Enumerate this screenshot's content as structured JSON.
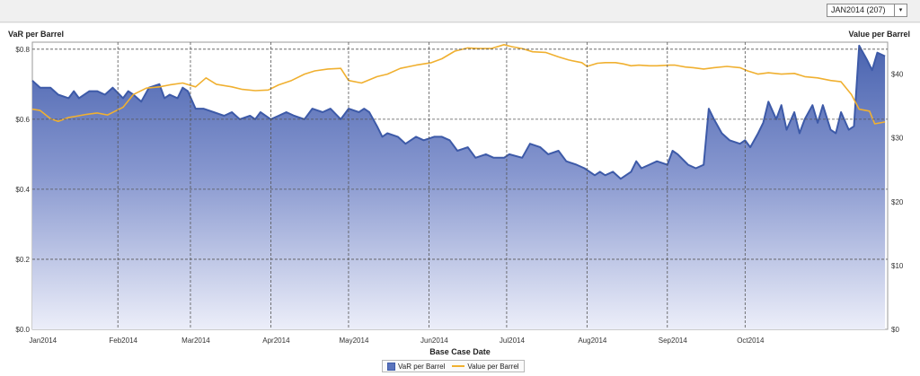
{
  "selector": {
    "value": "JAN2014 (207)",
    "arrow": "▾"
  },
  "chart_data": {
    "type": "area+line",
    "xlabel": "Base Case Date",
    "ylabel_left": "VaR per Barrel",
    "ylabel_right": "Value per Barrel",
    "x_ticks": [
      "Jan2014",
      "Feb2014",
      "Mar2014",
      "Apr2014",
      "May2014",
      "Jun2014",
      "Jul2014",
      "Aug2014",
      "Sep2014",
      "Oct2014"
    ],
    "y_left_ticks": [
      "$0.0",
      "$0.2",
      "$0.4",
      "$0.6",
      "$0.8"
    ],
    "y_right_ticks": [
      "$0",
      "$10",
      "$20",
      "$30",
      "$40"
    ],
    "ylim_left": [
      0,
      0.82
    ],
    "ylim_right": [
      0,
      45
    ],
    "grid": true,
    "legend_position": "bottom-center",
    "series": [
      {
        "name": "VaR per Barrel",
        "kind": "area",
        "color": "#4a64b0",
        "points": [
          [
            "2013-12-30",
            0.71
          ],
          [
            "2014-01-02",
            0.69
          ],
          [
            "2014-01-06",
            0.69
          ],
          [
            "2014-01-09",
            0.67
          ],
          [
            "2014-01-13",
            0.66
          ],
          [
            "2014-01-15",
            0.68
          ],
          [
            "2014-01-17",
            0.66
          ],
          [
            "2014-01-21",
            0.68
          ],
          [
            "2014-01-24",
            0.68
          ],
          [
            "2014-01-27",
            0.67
          ],
          [
            "2014-01-30",
            0.69
          ],
          [
            "2014-02-03",
            0.66
          ],
          [
            "2014-02-05",
            0.68
          ],
          [
            "2014-02-07",
            0.67
          ],
          [
            "2014-02-10",
            0.65
          ],
          [
            "2014-02-13",
            0.69
          ],
          [
            "2014-02-17",
            0.7
          ],
          [
            "2014-02-19",
            0.66
          ],
          [
            "2014-02-21",
            0.67
          ],
          [
            "2014-02-24",
            0.66
          ],
          [
            "2014-02-26",
            0.69
          ],
          [
            "2014-02-28",
            0.68
          ],
          [
            "2014-03-03",
            0.63
          ],
          [
            "2014-03-06",
            0.63
          ],
          [
            "2014-03-10",
            0.62
          ],
          [
            "2014-03-14",
            0.61
          ],
          [
            "2014-03-17",
            0.62
          ],
          [
            "2014-03-20",
            0.6
          ],
          [
            "2014-03-24",
            0.61
          ],
          [
            "2014-03-26",
            0.6
          ],
          [
            "2014-03-28",
            0.62
          ],
          [
            "2014-04-01",
            0.6
          ],
          [
            "2014-04-04",
            0.61
          ],
          [
            "2014-04-07",
            0.62
          ],
          [
            "2014-04-10",
            0.61
          ],
          [
            "2014-04-14",
            0.6
          ],
          [
            "2014-04-17",
            0.63
          ],
          [
            "2014-04-21",
            0.62
          ],
          [
            "2014-04-24",
            0.63
          ],
          [
            "2014-04-28",
            0.6
          ],
          [
            "2014-05-01",
            0.63
          ],
          [
            "2014-05-05",
            0.62
          ],
          [
            "2014-05-07",
            0.63
          ],
          [
            "2014-05-09",
            0.62
          ],
          [
            "2014-05-12",
            0.58
          ],
          [
            "2014-05-14",
            0.55
          ],
          [
            "2014-05-16",
            0.56
          ],
          [
            "2014-05-20",
            0.55
          ],
          [
            "2014-05-23",
            0.53
          ],
          [
            "2014-05-27",
            0.55
          ],
          [
            "2014-05-30",
            0.54
          ],
          [
            "2014-06-03",
            0.55
          ],
          [
            "2014-06-06",
            0.55
          ],
          [
            "2014-06-09",
            0.54
          ],
          [
            "2014-06-12",
            0.51
          ],
          [
            "2014-06-16",
            0.52
          ],
          [
            "2014-06-19",
            0.49
          ],
          [
            "2014-06-23",
            0.5
          ],
          [
            "2014-06-26",
            0.49
          ],
          [
            "2014-06-30",
            0.49
          ],
          [
            "2014-07-02",
            0.5
          ],
          [
            "2014-07-07",
            0.49
          ],
          [
            "2014-07-10",
            0.53
          ],
          [
            "2014-07-14",
            0.52
          ],
          [
            "2014-07-17",
            0.5
          ],
          [
            "2014-07-21",
            0.51
          ],
          [
            "2014-07-24",
            0.48
          ],
          [
            "2014-07-28",
            0.47
          ],
          [
            "2014-07-31",
            0.46
          ],
          [
            "2014-08-04",
            0.44
          ],
          [
            "2014-08-06",
            0.45
          ],
          [
            "2014-08-08",
            0.44
          ],
          [
            "2014-08-11",
            0.45
          ],
          [
            "2014-08-14",
            0.43
          ],
          [
            "2014-08-18",
            0.45
          ],
          [
            "2014-08-20",
            0.48
          ],
          [
            "2014-08-22",
            0.46
          ],
          [
            "2014-08-25",
            0.47
          ],
          [
            "2014-08-28",
            0.48
          ],
          [
            "2014-09-01",
            0.47
          ],
          [
            "2014-09-03",
            0.51
          ],
          [
            "2014-09-05",
            0.5
          ],
          [
            "2014-09-09",
            0.47
          ],
          [
            "2014-09-12",
            0.46
          ],
          [
            "2014-09-15",
            0.47
          ],
          [
            "2014-09-17",
            0.63
          ],
          [
            "2014-09-19",
            0.6
          ],
          [
            "2014-09-22",
            0.56
          ],
          [
            "2014-09-25",
            0.54
          ],
          [
            "2014-09-29",
            0.53
          ],
          [
            "2014-10-01",
            0.54
          ],
          [
            "2014-10-03",
            0.52
          ],
          [
            "2014-10-06",
            0.56
          ],
          [
            "2014-10-08",
            0.59
          ],
          [
            "2014-10-10",
            0.65
          ],
          [
            "2014-10-13",
            0.6
          ],
          [
            "2014-10-15",
            0.64
          ],
          [
            "2014-10-17",
            0.57
          ],
          [
            "2014-10-20",
            0.62
          ],
          [
            "2014-10-22",
            0.56
          ],
          [
            "2014-10-24",
            0.6
          ],
          [
            "2014-10-27",
            0.64
          ],
          [
            "2014-10-29",
            0.59
          ],
          [
            "2014-10-31",
            0.64
          ],
          [
            "2014-11-03",
            0.57
          ],
          [
            "2014-11-05",
            0.56
          ],
          [
            "2014-11-07",
            0.62
          ],
          [
            "2014-11-10",
            0.57
          ],
          [
            "2014-11-12",
            0.58
          ],
          [
            "2014-11-14",
            0.81
          ],
          [
            "2014-11-17",
            0.77
          ],
          [
            "2014-11-19",
            0.74
          ],
          [
            "2014-11-21",
            0.79
          ],
          [
            "2014-11-24",
            0.78
          ]
        ]
      },
      {
        "name": "Value per Barrel",
        "kind": "line",
        "color": "#f0b030",
        "axis": "right",
        "points": [
          [
            "2013-12-30",
            34.5
          ],
          [
            "2014-01-02",
            34.3
          ],
          [
            "2014-01-06",
            33.0
          ],
          [
            "2014-01-09",
            32.6
          ],
          [
            "2014-01-13",
            33.2
          ],
          [
            "2014-01-16",
            33.4
          ],
          [
            "2014-01-20",
            33.7
          ],
          [
            "2014-01-24",
            33.9
          ],
          [
            "2014-01-28",
            33.6
          ],
          [
            "2014-02-03",
            34.8
          ],
          [
            "2014-02-07",
            36.8
          ],
          [
            "2014-02-12",
            37.8
          ],
          [
            "2014-02-17",
            38.0
          ],
          [
            "2014-02-21",
            38.3
          ],
          [
            "2014-02-26",
            38.6
          ],
          [
            "2014-03-03",
            38.0
          ],
          [
            "2014-03-07",
            39.4
          ],
          [
            "2014-03-11",
            38.4
          ],
          [
            "2014-03-17",
            38.0
          ],
          [
            "2014-03-21",
            37.6
          ],
          [
            "2014-03-26",
            37.4
          ],
          [
            "2014-03-31",
            37.5
          ],
          [
            "2014-04-04",
            38.3
          ],
          [
            "2014-04-09",
            39.0
          ],
          [
            "2014-04-14",
            40.0
          ],
          [
            "2014-04-18",
            40.5
          ],
          [
            "2014-04-23",
            40.8
          ],
          [
            "2014-04-28",
            40.9
          ],
          [
            "2014-05-01",
            39.0
          ],
          [
            "2014-05-06",
            38.6
          ],
          [
            "2014-05-12",
            39.6
          ],
          [
            "2014-05-16",
            40.0
          ],
          [
            "2014-05-21",
            40.9
          ],
          [
            "2014-05-27",
            41.4
          ],
          [
            "2014-06-02",
            41.8
          ],
          [
            "2014-06-06",
            42.4
          ],
          [
            "2014-06-11",
            43.6
          ],
          [
            "2014-06-16",
            44.1
          ],
          [
            "2014-06-20",
            44.0
          ],
          [
            "2014-06-25",
            44.0
          ],
          [
            "2014-06-30",
            44.6
          ],
          [
            "2014-07-03",
            44.3
          ],
          [
            "2014-07-07",
            44.0
          ],
          [
            "2014-07-11",
            43.5
          ],
          [
            "2014-07-16",
            43.4
          ],
          [
            "2014-07-21",
            42.7
          ],
          [
            "2014-07-25",
            42.2
          ],
          [
            "2014-07-30",
            41.8
          ],
          [
            "2014-08-01",
            41.2
          ],
          [
            "2014-08-05",
            41.7
          ],
          [
            "2014-08-08",
            41.8
          ],
          [
            "2014-08-12",
            41.8
          ],
          [
            "2014-08-15",
            41.6
          ],
          [
            "2014-08-18",
            41.3
          ],
          [
            "2014-08-21",
            41.4
          ],
          [
            "2014-08-25",
            41.3
          ],
          [
            "2014-08-28",
            41.3
          ],
          [
            "2014-09-02",
            41.4
          ],
          [
            "2014-09-04",
            41.4
          ],
          [
            "2014-09-08",
            41.1
          ],
          [
            "2014-09-11",
            41.0
          ],
          [
            "2014-09-15",
            40.8
          ],
          [
            "2014-09-19",
            41.0
          ],
          [
            "2014-09-24",
            41.2
          ],
          [
            "2014-09-29",
            41.0
          ],
          [
            "2014-10-02",
            40.5
          ],
          [
            "2014-10-06",
            40.0
          ],
          [
            "2014-10-10",
            40.2
          ],
          [
            "2014-10-15",
            40.0
          ],
          [
            "2014-10-20",
            40.1
          ],
          [
            "2014-10-24",
            39.6
          ],
          [
            "2014-10-29",
            39.4
          ],
          [
            "2014-11-03",
            39.0
          ],
          [
            "2014-11-07",
            38.8
          ],
          [
            "2014-11-11",
            36.8
          ],
          [
            "2014-11-14",
            34.5
          ],
          [
            "2014-11-18",
            34.2
          ],
          [
            "2014-11-20",
            32.2
          ],
          [
            "2014-11-24",
            32.5
          ]
        ]
      }
    ]
  }
}
